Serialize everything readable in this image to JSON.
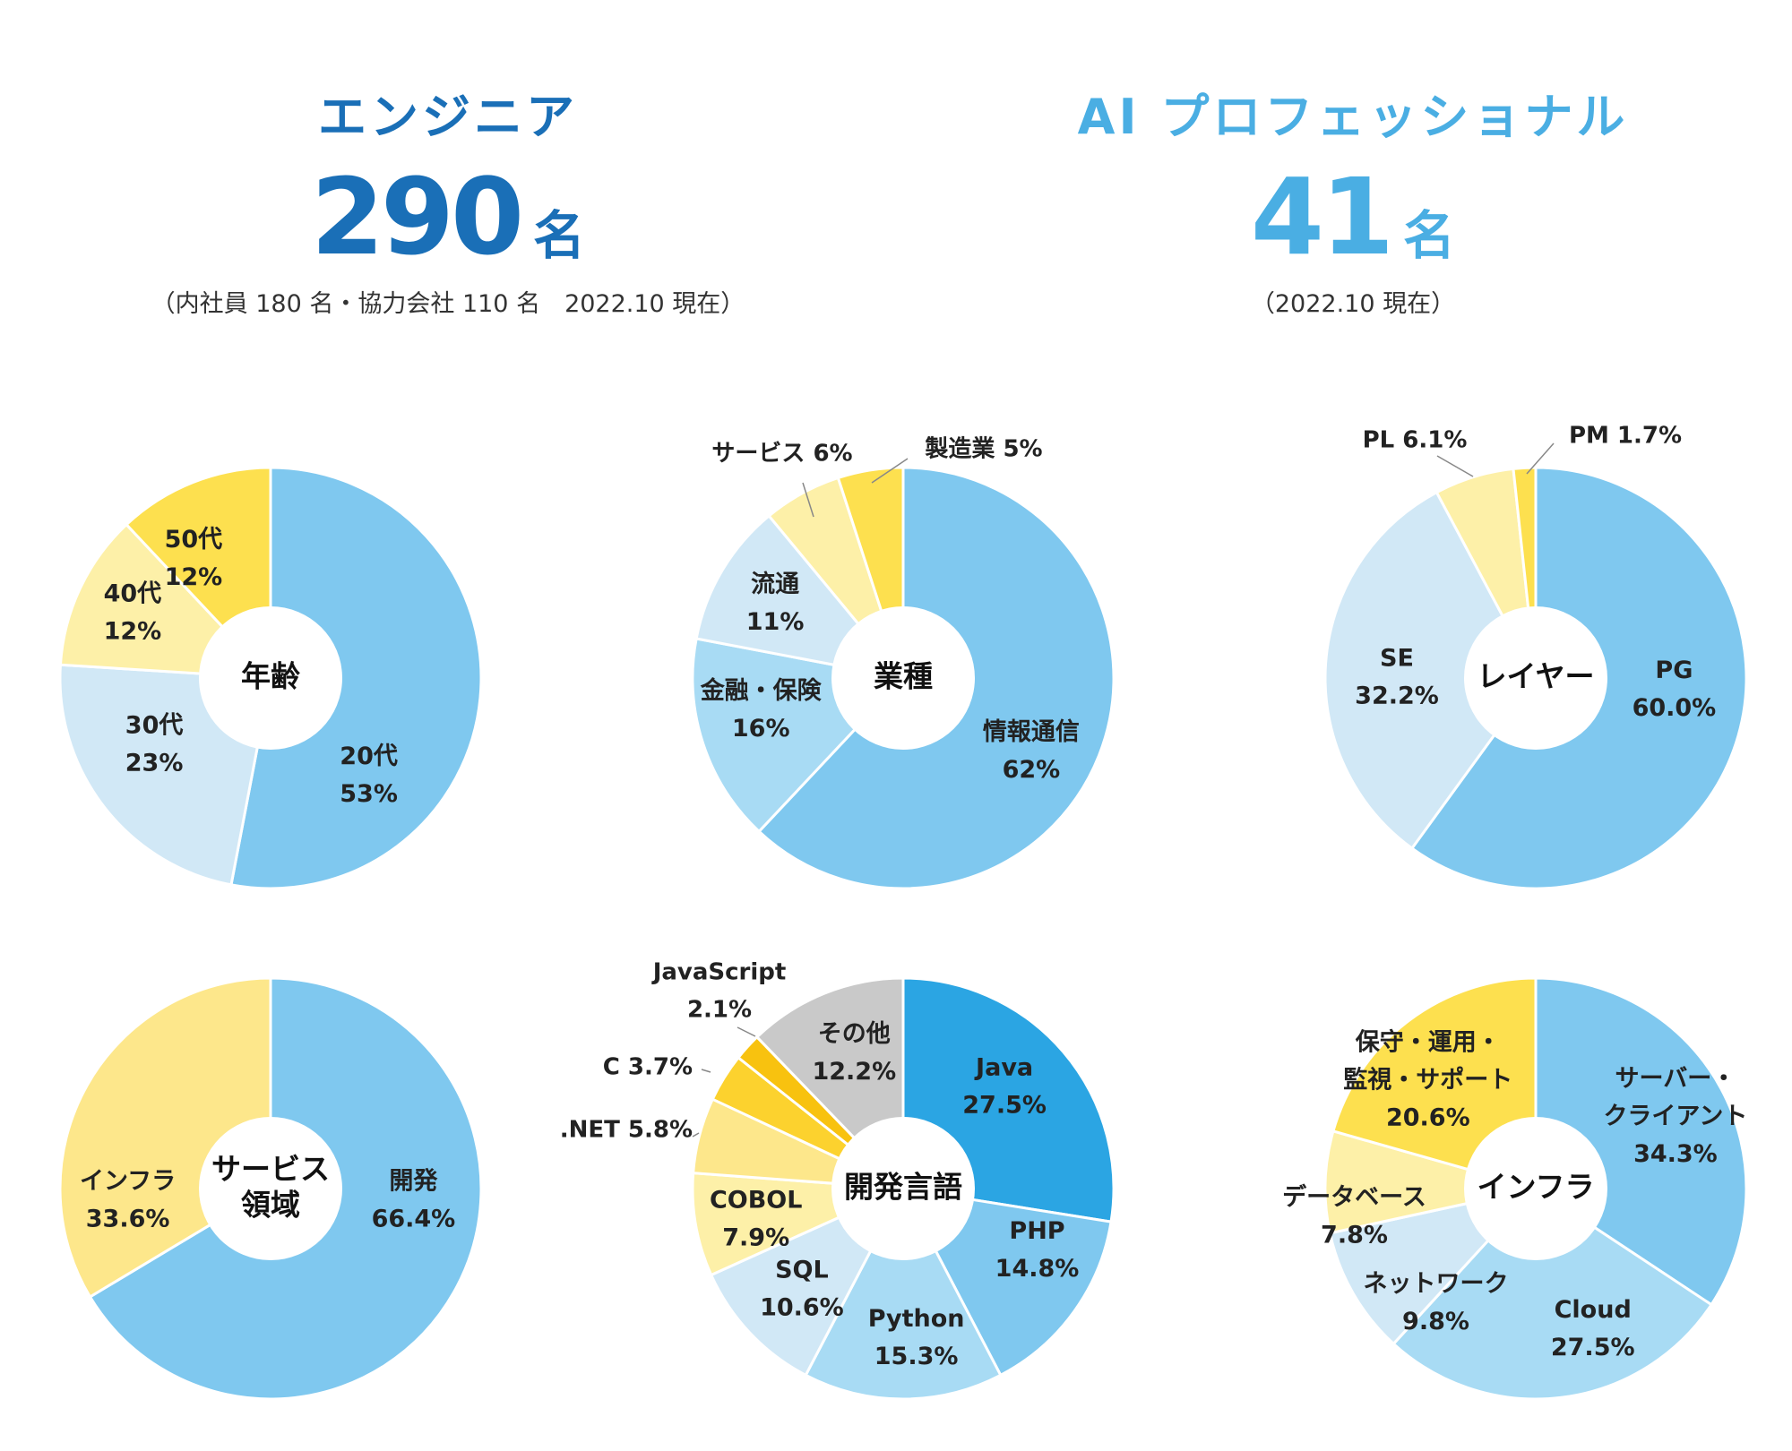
{
  "stats": {
    "engineer": {
      "title": "エンジニア",
      "count": "290",
      "unit": "名",
      "note": "（内社員 180 名・協力会社 110 名　2022.10 現在）"
    },
    "ai": {
      "title": "AI プロフェッショナル",
      "count": "41",
      "unit": "名",
      "note": "（2022.10 現在）"
    }
  },
  "colors": {
    "blue_main": "#7fc8ef",
    "blue_mid": "#a8dbf4",
    "blue_pale": "#d1e8f6",
    "blue_deep": "#2ba5e3",
    "yellow_pale": "#fdf0a8",
    "yellow_light": "#fde78b",
    "yellow": "#fdde4f",
    "yellow_deep": "#fcd22e",
    "yellow_gold": "#f8c20f",
    "gray": "#c9c9c9"
  },
  "chart_data": [
    {
      "type": "pie",
      "id": "age",
      "center_label": [
        "年齢"
      ],
      "slices": [
        {
          "label": [
            "20代",
            "53%"
          ],
          "value": 53,
          "color": "#7fc8ef"
        },
        {
          "label": [
            "30代",
            "23%"
          ],
          "value": 23,
          "color": "#d1e8f6"
        },
        {
          "label": [
            "40代",
            "12%"
          ],
          "value": 12,
          "color": "#fdf0a8"
        },
        {
          "label": [
            "50代",
            "12%"
          ],
          "value": 12,
          "color": "#fde04f"
        }
      ]
    },
    {
      "type": "pie",
      "id": "industry",
      "center_label": [
        "業種"
      ],
      "slices": [
        {
          "label": [
            "情報通信",
            "62%"
          ],
          "value": 62,
          "color": "#7fc8ef"
        },
        {
          "label": [
            "金融・保険",
            "16%"
          ],
          "value": 16,
          "color": "#a8dbf4"
        },
        {
          "label": [
            "流通",
            "11%"
          ],
          "value": 11,
          "color": "#d1e8f6"
        },
        {
          "label": [
            "サービス 6%"
          ],
          "value": 6,
          "color": "#fdf0a8",
          "callout": true
        },
        {
          "label": [
            "製造業 5%"
          ],
          "value": 5,
          "color": "#fde04f",
          "callout": true
        }
      ]
    },
    {
      "type": "pie",
      "id": "layer",
      "center_label": [
        "レイヤー"
      ],
      "slices": [
        {
          "label": [
            "PG",
            "60.0%"
          ],
          "value": 60.0,
          "color": "#7fc8ef"
        },
        {
          "label": [
            "SE",
            "32.2%"
          ],
          "value": 32.2,
          "color": "#d1e8f6"
        },
        {
          "label": [
            "PL 6.1%"
          ],
          "value": 6.1,
          "color": "#fdf0a8",
          "callout": true
        },
        {
          "label": [
            "PM 1.7%"
          ],
          "value": 1.7,
          "color": "#fde04f",
          "callout": true
        }
      ]
    },
    {
      "type": "pie",
      "id": "service",
      "center_label": [
        "サービス",
        "領域"
      ],
      "slices": [
        {
          "label": [
            "開発",
            "66.4%"
          ],
          "value": 66.4,
          "color": "#7fc8ef"
        },
        {
          "label": [
            "インフラ",
            "33.6%"
          ],
          "value": 33.6,
          "color": "#fde78b"
        }
      ]
    },
    {
      "type": "pie",
      "id": "language",
      "center_label": [
        "開発言語"
      ],
      "slices": [
        {
          "label": [
            "Java",
            "27.5%"
          ],
          "value": 27.5,
          "color": "#2ba5e3",
          "text_color": "#ffffff"
        },
        {
          "label": [
            "PHP",
            "14.8%"
          ],
          "value": 14.8,
          "color": "#7fc8ef"
        },
        {
          "label": [
            "Python",
            "15.3%"
          ],
          "value": 15.3,
          "color": "#a8dbf4"
        },
        {
          "label": [
            "SQL",
            "10.6%"
          ],
          "value": 10.6,
          "color": "#d1e8f6"
        },
        {
          "label": [
            "COBOL",
            "7.9%"
          ],
          "value": 7.9,
          "color": "#fdf0a8"
        },
        {
          "label": [
            ".NET 5.8%"
          ],
          "value": 5.8,
          "color": "#fde78b",
          "callout": true
        },
        {
          "label": [
            "C  3.7%"
          ],
          "value": 3.7,
          "color": "#fcd22e",
          "callout": true
        },
        {
          "label": [
            "JavaScript",
            "2.1%"
          ],
          "value": 2.1,
          "color": "#f8c20f",
          "callout": true
        },
        {
          "label": [
            "その他",
            "12.2%"
          ],
          "value": 12.2,
          "color": "#c9c9c9"
        }
      ]
    },
    {
      "type": "pie",
      "id": "infra",
      "center_label": [
        "インフラ"
      ],
      "slices": [
        {
          "label": [
            "サーバー・",
            "クライアント",
            "34.3%"
          ],
          "value": 34.3,
          "color": "#7fc8ef"
        },
        {
          "label": [
            "Cloud",
            "27.5%"
          ],
          "value": 27.5,
          "color": "#a8dbf4"
        },
        {
          "label": [
            "ネットワーク",
            "9.8%"
          ],
          "value": 9.8,
          "color": "#d1e8f6"
        },
        {
          "label": [
            "データベース",
            "7.8%"
          ],
          "value": 7.8,
          "color": "#fdf0a8"
        },
        {
          "label": [
            "保守・運用・",
            "監視・サポート",
            "20.6%"
          ],
          "value": 20.6,
          "color": "#fde04f"
        }
      ]
    }
  ]
}
